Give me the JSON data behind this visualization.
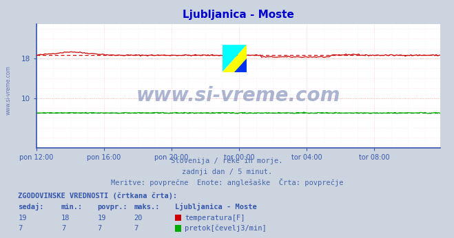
{
  "title": "Ljubljanica - Moste",
  "title_color": "#0000cc",
  "bg_color": "#ccd4e0",
  "plot_bg_color": "#ffffff",
  "watermark_text": "www.si-vreme.com",
  "watermark_color": "#6677aa",
  "subtitle_lines": [
    "Slovenija / reke in morje.",
    "zadnji dan / 5 minut.",
    "Meritve: povprečne  Enote: anglešaške  Črta: povprečje"
  ],
  "subtitle_color": "#4466aa",
  "xticklabels": [
    "pon 12:00",
    "pon 16:00",
    "pon 20:00",
    "tor 00:00",
    "tor 04:00",
    "tor 08:00"
  ],
  "xtick_positions": [
    0,
    48,
    96,
    144,
    192,
    240
  ],
  "axis_color": "#3355aa",
  "grid_color_h": "#ff9999",
  "grid_color_v": "#ffbbbb",
  "grid_minor_color": "#ffddee",
  "temp_color": "#cc0000",
  "flow_color": "#00bb00",
  "flow_dashed_color": "#008800",
  "table_header": "ZGODOVINSKE VREDNOSTI (črtkana črta):",
  "table_cols": [
    "sedaj:",
    "min.:",
    "povpr.:",
    "maks.:"
  ],
  "table_col2": "Ljubljanica - Moste",
  "table_rows": [
    {
      "values": [
        19,
        18,
        19,
        20
      ],
      "label": "temperatura[F]",
      "color": "#cc0000"
    },
    {
      "values": [
        7,
        7,
        7,
        7
      ],
      "label": "pretok[čevelj3/min]",
      "color": "#00aa00"
    }
  ],
  "sidebar_text": "www.si-vreme.com",
  "sidebar_color": "#5566aa",
  "n_points": 288,
  "ylim": [
    0,
    25
  ],
  "yticks": [
    10,
    18
  ],
  "yticklabels": [
    "10",
    "18"
  ]
}
